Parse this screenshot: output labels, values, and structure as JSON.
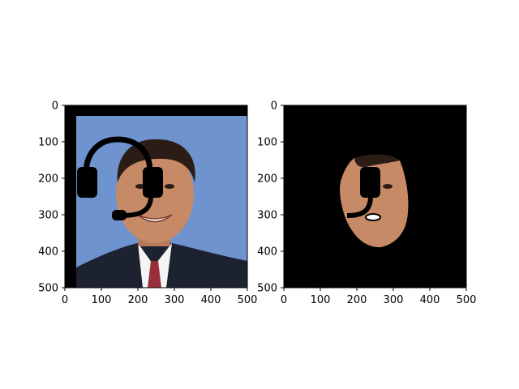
{
  "chart_data": [
    {
      "type": "image",
      "image_content": "portrait of a smiling man in a dark suit and tie with a black headset drawn over the face, blue background, black border on left and top",
      "xlim": [
        0,
        500
      ],
      "ylim": [
        500,
        0
      ],
      "xticks": [
        0,
        100,
        200,
        300,
        400,
        500
      ],
      "yticks": [
        0,
        100,
        200,
        300,
        400,
        500
      ],
      "xtick_labels": [
        "0",
        "100",
        "200",
        "300",
        "400",
        "500"
      ],
      "ytick_labels": [
        "0",
        "100",
        "200",
        "300",
        "400",
        "500"
      ],
      "colors": {
        "border": "#000000",
        "background": "#6f93cf",
        "suit": "#1c2230",
        "shirt": "#f4f4f4",
        "skin": "#c68a66",
        "hair": "#2b1d16",
        "headset": "#000000"
      }
    },
    {
      "type": "image",
      "image_content": "segmented face region of the same man on a black background, with the headset overlay partially visible",
      "xlim": [
        0,
        500
      ],
      "ylim": [
        500,
        0
      ],
      "xticks": [
        0,
        100,
        200,
        300,
        400,
        500
      ],
      "yticks": [
        0,
        100,
        200,
        300,
        400,
        500
      ],
      "xtick_labels": [
        "0",
        "100",
        "200",
        "300",
        "400",
        "500"
      ],
      "ytick_labels": [
        "0",
        "100",
        "200",
        "300",
        "400",
        "500"
      ],
      "colors": {
        "background": "#000000",
        "skin": "#c68a66",
        "headset": "#000000"
      }
    }
  ]
}
